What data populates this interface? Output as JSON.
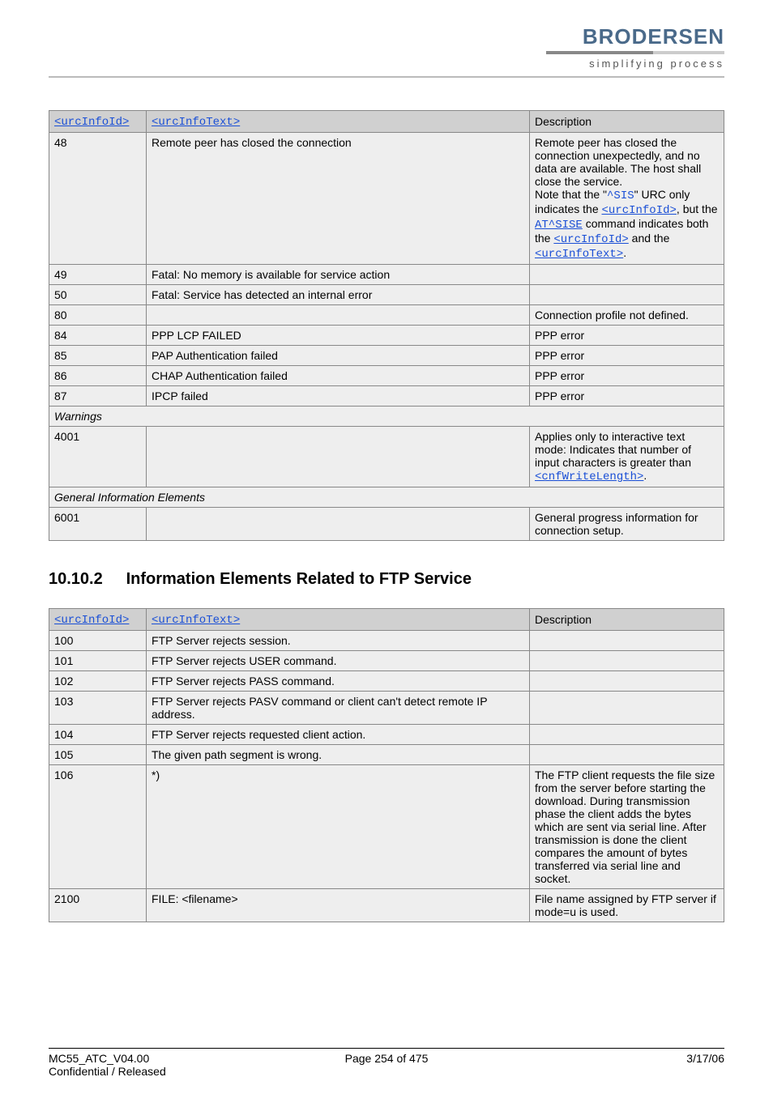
{
  "brand": {
    "name": "BRODERSEN",
    "tagline": "simplifying process"
  },
  "table1": {
    "headers": {
      "id": "<urcInfoId>",
      "text": "<urcInfoText>",
      "desc": "Description"
    },
    "rows": [
      {
        "id": "48",
        "text": "Remote peer has closed the connection",
        "desc_parts": {
          "p1": "Remote peer has closed the connection unexpectedly, and no data are available. The host shall close the service.",
          "p2a": "Note that the \"",
          "p2_code1": "^SIS",
          "p2b": "\" URC only indicates the ",
          "p2_code2": "<urcInfoId>",
          "p2c": ", but the ",
          "p2_code3": "AT^SISE",
          "p2d": " command indicates both the ",
          "p2_code4": "<urcInfoId>",
          "p2e": " and the ",
          "p2_code5": "<urcInfoText>",
          "p2f": "."
        }
      },
      {
        "id": "49",
        "text": "Fatal: No memory is available for service action",
        "desc": ""
      },
      {
        "id": "50",
        "text": "Fatal: Service has detected an internal error",
        "desc": ""
      },
      {
        "id": "80",
        "text": "",
        "desc": "Connection profile not defined."
      },
      {
        "id": "84",
        "text": "PPP LCP FAILED",
        "desc": "PPP error"
      },
      {
        "id": "85",
        "text": "PAP Authentication failed",
        "desc": "PPP error"
      },
      {
        "id": "86",
        "text": "CHAP Authentication failed",
        "desc": "PPP error"
      },
      {
        "id": "87",
        "text": "IPCP failed",
        "desc": "PPP error"
      }
    ],
    "section_warnings": "Warnings",
    "row_4001": {
      "id": "4001",
      "desc_a": "Applies only to interactive text mode: Indicates that number of input characters is greater than ",
      "desc_code": "<cnfWriteLength>",
      "desc_b": "."
    },
    "section_general": "General Information Elements",
    "row_6001": {
      "id": "6001",
      "desc": "General progress information for connection setup."
    }
  },
  "heading": {
    "num": "10.10.2",
    "title": "Information Elements Related to FTP Service"
  },
  "table2": {
    "headers": {
      "id": "<urcInfoId>",
      "text": "<urcInfoText>",
      "desc": "Description"
    },
    "rows": [
      {
        "id": "100",
        "text": "FTP Server rejects session.",
        "desc": ""
      },
      {
        "id": "101",
        "text": "FTP Server rejects USER command.",
        "desc": ""
      },
      {
        "id": "102",
        "text": "FTP Server rejects PASS command.",
        "desc": ""
      },
      {
        "id": "103",
        "text": "FTP Server rejects PASV command or client can't detect remote IP address.",
        "desc": ""
      },
      {
        "id": "104",
        "text": "FTP Server rejects requested client action.",
        "desc": ""
      },
      {
        "id": "105",
        "text": "The given path segment is wrong.",
        "desc": ""
      },
      {
        "id": "106",
        "text": "*)",
        "desc": "The FTP client requests the file size from the server before starting the download. During transmission phase the client adds the bytes which are sent via serial line. After transmission is done the client compares the amount of bytes transferred via serial line and socket."
      },
      {
        "id": "2100",
        "text": "FILE: <filename>",
        "desc": "File name assigned by FTP server if mode=u is used."
      }
    ]
  },
  "footer": {
    "left1": "MC55_ATC_V04.00",
    "left2": "Confidential / Released",
    "center": "Page 254 of 475",
    "right": "3/17/06"
  }
}
